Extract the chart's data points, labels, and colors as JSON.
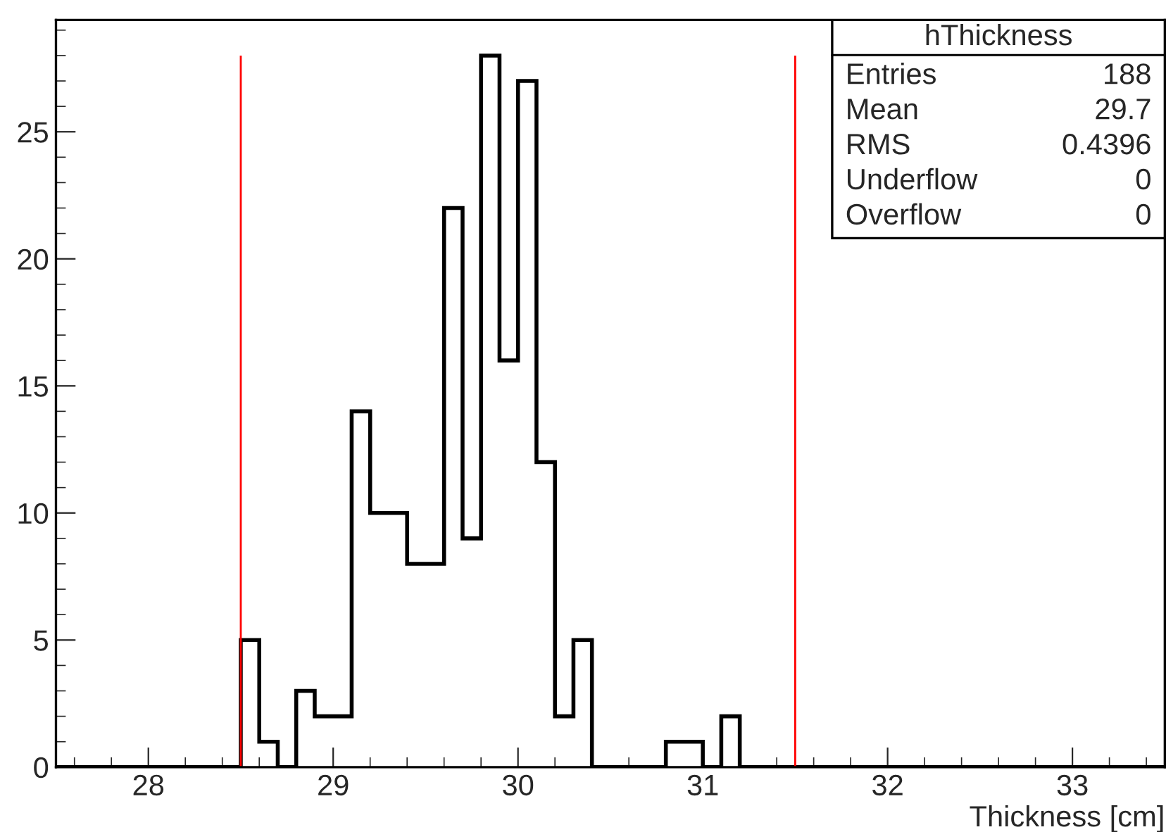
{
  "chart_data": {
    "type": "histogram",
    "xlabel": "Thickness [cm]",
    "bins": [
      27.5,
      27.6,
      27.7,
      27.8,
      27.9,
      28.0,
      28.1,
      28.2,
      28.3,
      28.4,
      28.5,
      28.6,
      28.7,
      28.8,
      28.9,
      29.0,
      29.1,
      29.2,
      29.3,
      29.4,
      29.5,
      29.6,
      29.7,
      29.8,
      29.9,
      30.0,
      30.1,
      30.2,
      30.3,
      30.4,
      30.5,
      30.6,
      30.7,
      30.8,
      30.9,
      31.0,
      31.1,
      31.2,
      31.3,
      31.4,
      31.5,
      31.6,
      31.7,
      31.8,
      31.9,
      32.0,
      32.1,
      32.2,
      32.3,
      32.4,
      32.5,
      32.6,
      32.7,
      32.8,
      32.9,
      33.0,
      33.1,
      33.2,
      33.3,
      33.4,
      33.5
    ],
    "values": [
      0,
      0,
      0,
      0,
      0,
      0,
      0,
      0,
      0,
      0,
      5,
      1,
      0,
      3,
      2,
      2,
      14,
      10,
      10,
      8,
      8,
      22,
      9,
      28,
      16,
      27,
      12,
      2,
      5,
      0,
      0,
      0,
      0,
      1,
      1,
      0,
      2,
      0,
      0,
      0,
      0,
      0,
      0,
      0,
      0,
      0,
      0,
      0,
      0,
      0,
      0,
      0,
      0,
      0,
      0,
      0,
      0,
      0,
      0,
      0
    ],
    "color": "#000000",
    "xlim": [
      27.5,
      33.5
    ],
    "ylim": [
      0,
      29.4
    ],
    "xticks": [
      28,
      29,
      30,
      31,
      32,
      33
    ],
    "yticks": [
      0,
      5,
      10,
      15,
      20,
      25
    ],
    "ref_lines": [
      {
        "axis": "x",
        "value": 28.5,
        "color": "#ff0000"
      },
      {
        "axis": "x",
        "value": 31.5,
        "color": "#ff0000"
      }
    ],
    "annotations": [
      "hThickness",
      "Entries",
      "188",
      "Mean",
      "29.7",
      "RMS",
      "0.4396",
      "Underflow",
      "0",
      "Overflow",
      "0"
    ],
    "grid": false
  }
}
